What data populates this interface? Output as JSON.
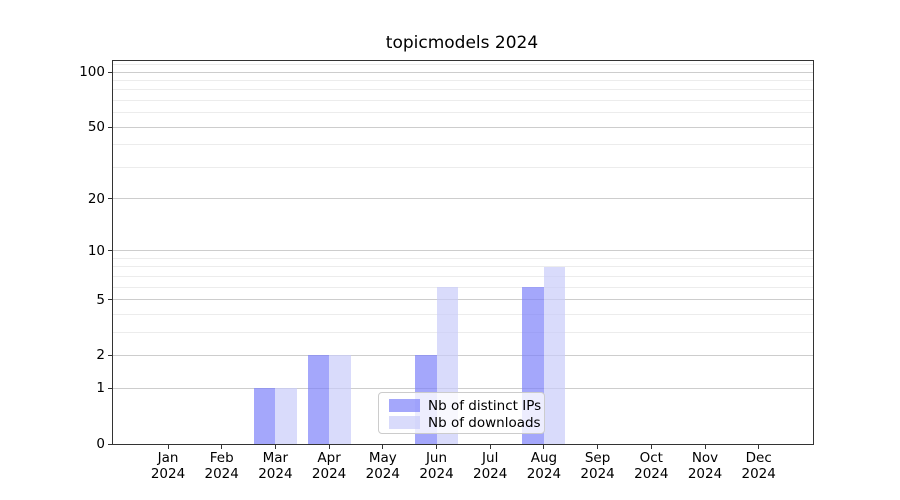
{
  "chart_data": {
    "type": "bar",
    "title": "topicmodels 2024",
    "categories": [
      "Jan",
      "Feb",
      "Mar",
      "Apr",
      "May",
      "Jun",
      "Jul",
      "Aug",
      "Sep",
      "Oct",
      "Nov",
      "Dec"
    ],
    "year_label": "2024",
    "series": [
      {
        "name": "Nb of distinct IPs",
        "color": "#7d82fa",
        "alpha": 0.7,
        "values": [
          0,
          0,
          1,
          2,
          0,
          2,
          0,
          6,
          0,
          0,
          0,
          0
        ]
      },
      {
        "name": "Nb of downloads",
        "color": "#c9ccf9",
        "alpha": 0.7,
        "values": [
          0,
          0,
          1,
          2,
          0,
          6,
          0,
          8,
          0,
          0,
          0,
          0
        ]
      }
    ],
    "y_scale": "log1p",
    "ylim": [
      0,
      115
    ],
    "yticks_major": [
      0,
      1,
      2,
      5,
      10,
      20,
      50,
      100
    ],
    "yticks_minor": [
      3,
      4,
      6,
      7,
      8,
      9,
      30,
      40,
      60,
      70,
      80,
      90,
      110
    ],
    "grid": true,
    "legend_position": "inside lower-center",
    "colors": {
      "major_grid": "#cdcdcd",
      "minor_grid": "#ececec",
      "spine": "#333333",
      "text": "#000000"
    }
  }
}
